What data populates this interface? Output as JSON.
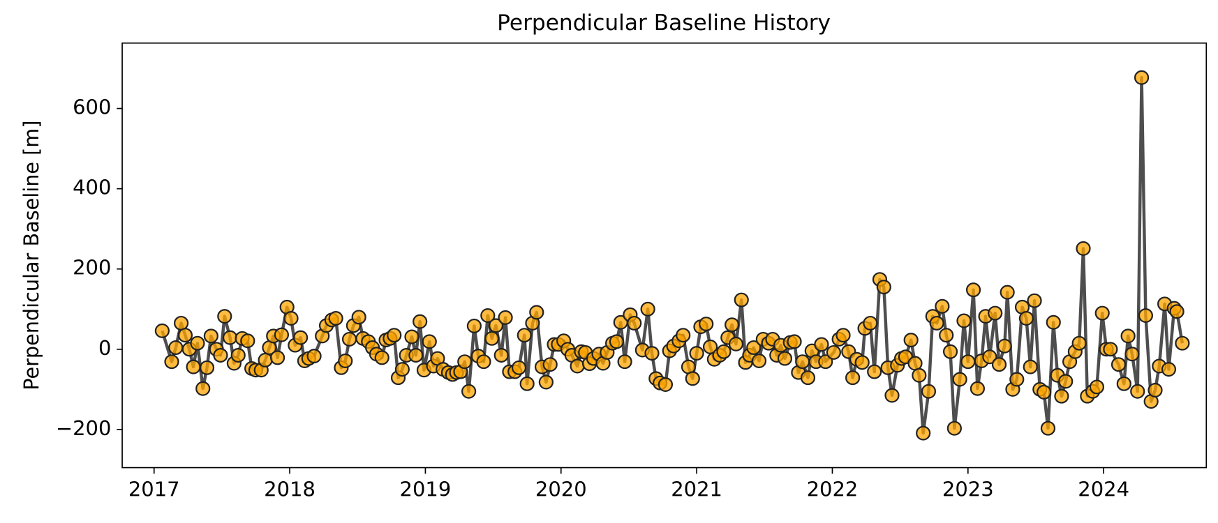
{
  "chart_data": {
    "type": "line",
    "title": "Perpendicular Baseline History",
    "ylabel": "Perpendicular Baseline [m]",
    "xlim": [
      2016.765,
      2024.757
    ],
    "xticks": [
      2017,
      2018,
      2019,
      2020,
      2021,
      2022,
      2023,
      2024
    ],
    "ylim": [
      -295,
      763
    ],
    "yticks": [
      {
        "value": -200,
        "label": "−200"
      },
      0,
      200,
      400,
      600
    ],
    "grid": false,
    "series": [
      {
        "name": "Perpendicular Baseline",
        "color": "#ffa500",
        "line_color": "#444444",
        "x": [
          2017.06,
          2017.13,
          2017.16,
          2017.2,
          2017.23,
          2017.26,
          2017.29,
          2017.32,
          2017.36,
          2017.39,
          2017.42,
          2017.46,
          2017.49,
          2017.52,
          2017.56,
          2017.59,
          2017.62,
          2017.65,
          2017.69,
          2017.72,
          2017.75,
          2017.79,
          2017.82,
          2017.85,
          2017.88,
          2017.91,
          2017.94,
          2017.98,
          2018.01,
          2018.04,
          2018.08,
          2018.11,
          2018.14,
          2018.18,
          2018.24,
          2018.27,
          2018.31,
          2018.34,
          2018.38,
          2018.41,
          2018.44,
          2018.47,
          2018.51,
          2018.54,
          2018.58,
          2018.61,
          2018.64,
          2018.68,
          2018.71,
          2018.74,
          2018.77,
          2018.8,
          2018.83,
          2018.86,
          2018.9,
          2018.93,
          2018.96,
          2018.99,
          2019.03,
          2019.06,
          2019.09,
          2019.13,
          2019.17,
          2019.2,
          2019.23,
          2019.26,
          2019.29,
          2019.32,
          2019.36,
          2019.39,
          2019.43,
          2019.46,
          2019.49,
          2019.52,
          2019.56,
          2019.59,
          2019.62,
          2019.66,
          2019.69,
          2019.73,
          2019.75,
          2019.79,
          2019.82,
          2019.86,
          2019.89,
          2019.92,
          2019.95,
          2019.98,
          2020.02,
          2020.05,
          2020.08,
          2020.12,
          2020.15,
          2020.18,
          2020.21,
          2020.24,
          2020.28,
          2020.31,
          2020.34,
          2020.38,
          2020.41,
          2020.44,
          2020.47,
          2020.51,
          2020.54,
          2020.6,
          2020.64,
          2020.67,
          2020.7,
          2020.73,
          2020.77,
          2020.8,
          2020.83,
          2020.87,
          2020.9,
          2020.94,
          2020.97,
          2021.0,
          2021.03,
          2021.07,
          2021.1,
          2021.13,
          2021.17,
          2021.2,
          2021.23,
          2021.26,
          2021.29,
          2021.33,
          2021.36,
          2021.39,
          2021.42,
          2021.46,
          2021.49,
          2021.53,
          2021.56,
          2021.59,
          2021.62,
          2021.65,
          2021.69,
          2021.72,
          2021.75,
          2021.78,
          2021.82,
          2021.85,
          2021.88,
          2021.92,
          2021.95,
          2022.01,
          2022.05,
          2022.08,
          2022.12,
          2022.15,
          2022.18,
          2022.22,
          2022.24,
          2022.28,
          2022.31,
          2022.35,
          2022.38,
          2022.41,
          2022.44,
          2022.48,
          2022.51,
          2022.54,
          2022.58,
          2022.61,
          2022.64,
          2022.67,
          2022.71,
          2022.74,
          2022.77,
          2022.81,
          2022.84,
          2022.87,
          2022.9,
          2022.94,
          2022.97,
          2023.0,
          2023.04,
          2023.07,
          2023.1,
          2023.13,
          2023.16,
          2023.2,
          2023.23,
          2023.27,
          2023.29,
          2023.33,
          2023.36,
          2023.4,
          2023.43,
          2023.46,
          2023.49,
          2023.53,
          2023.56,
          2023.59,
          2023.63,
          2023.66,
          2023.69,
          2023.72,
          2023.75,
          2023.79,
          2023.82,
          2023.85,
          2023.88,
          2023.92,
          2023.95,
          2023.99,
          2024.02,
          2024.05,
          2024.11,
          2024.15,
          2024.18,
          2024.21,
          2024.25,
          2024.28,
          2024.31,
          2024.35,
          2024.38,
          2024.41,
          2024.45,
          2024.48,
          2024.52,
          2024.54,
          2024.58
        ],
        "values": [
          46,
          -31,
          4,
          65,
          35,
          0,
          -44,
          15,
          -98,
          -46,
          33,
          0,
          -15,
          82,
          29,
          -35,
          -15,
          27,
          21,
          -48,
          -52,
          -52,
          -27,
          4,
          33,
          -21,
          36,
          105,
          77,
          10,
          29,
          -29,
          -23,
          -17,
          33,
          59,
          73,
          77,
          -46,
          -29,
          25,
          59,
          80,
          27,
          19,
          4,
          -12,
          -21,
          23,
          27,
          35,
          -71,
          -50,
          -15,
          31,
          -15,
          69,
          -52,
          19,
          -42,
          -23,
          -50,
          -58,
          -63,
          -58,
          -56,
          -31,
          -105,
          58,
          -17,
          -31,
          84,
          27,
          59,
          -15,
          79,
          -56,
          -56,
          -46,
          35,
          -86,
          65,
          92,
          -44,
          -82,
          -38,
          12,
          12,
          21,
          0,
          -15,
          -42,
          -6,
          -8,
          -36,
          -23,
          -12,
          -35,
          -8,
          15,
          19,
          67,
          -31,
          86,
          65,
          -2,
          100,
          -10,
          -73,
          -84,
          -88,
          -4,
          8,
          21,
          35,
          -44,
          -73,
          -10,
          56,
          63,
          6,
          -25,
          -15,
          -6,
          29,
          61,
          13,
          123,
          -33,
          -15,
          4,
          -29,
          25,
          15,
          25,
          -15,
          10,
          -23,
          17,
          19,
          -58,
          -31,
          -71,
          -4,
          -31,
          12,
          -31,
          -8,
          25,
          35,
          -6,
          -71,
          -25,
          -33,
          52,
          65,
          -56,
          174,
          155,
          -46,
          -115,
          -40,
          -23,
          -19,
          23,
          -35,
          -65,
          -209,
          -105,
          82,
          65,
          107,
          35,
          -6,
          -197,
          -75,
          71,
          -31,
          148,
          -98,
          -29,
          82,
          -19,
          90,
          -38,
          8,
          142,
          -100,
          -75,
          105,
          77,
          -44,
          121,
          -100,
          -107,
          -197,
          67,
          -65,
          -117,
          -80,
          -31,
          -6,
          15,
          251,
          -117,
          -105,
          -94,
          90,
          0,
          0,
          -38,
          -86,
          33,
          -12,
          -105,
          677,
          84,
          -130,
          -102,
          -42,
          113,
          -50,
          102,
          94,
          15
        ]
      }
    ]
  }
}
